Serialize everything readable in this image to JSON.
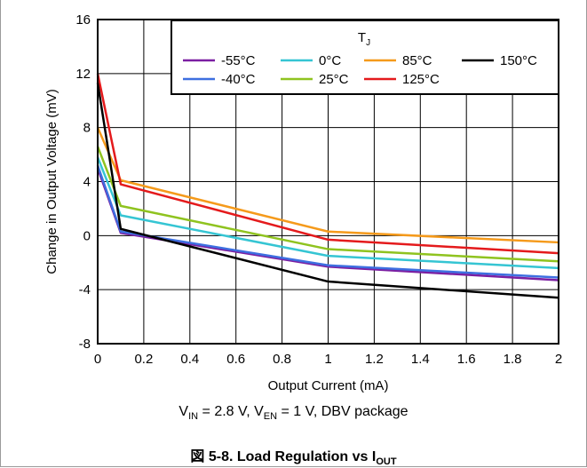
{
  "chart_data": {
    "type": "line",
    "title": "",
    "xlabel": "Output Current (mA)",
    "ylabel": "Change in Output Voltage (mV)",
    "xlim": [
      0,
      2
    ],
    "ylim": [
      -8,
      16
    ],
    "x_ticks": [
      "0",
      "0.2",
      "0.4",
      "0.6",
      "0.8",
      "1",
      "1.2",
      "1.4",
      "1.6",
      "1.8",
      "2"
    ],
    "y_ticks": [
      "16",
      "12",
      "8",
      "4",
      "0",
      "-4",
      "-8"
    ],
    "grid": true,
    "legend": {
      "title": "T",
      "title_sub": "J",
      "placement": "top-right"
    },
    "x": [
      0,
      0.1,
      1,
      2
    ],
    "series": [
      {
        "name": "-55°C",
        "color": "#7b1fa2",
        "values": [
          5.0,
          0.2,
          -2.3,
          -3.3
        ]
      },
      {
        "name": "-40°C",
        "color": "#3d6fe0",
        "values": [
          5.2,
          0.3,
          -2.2,
          -3.1
        ]
      },
      {
        "name": "0°C",
        "color": "#35c5d3",
        "values": [
          5.8,
          1.5,
          -1.5,
          -2.4
        ]
      },
      {
        "name": "25°C",
        "color": "#8fc31f",
        "values": [
          6.6,
          2.2,
          -1.0,
          -1.9
        ]
      },
      {
        "name": "85°C",
        "color": "#f59a1b",
        "values": [
          8.0,
          4.1,
          0.3,
          -0.5
        ]
      },
      {
        "name": "125°C",
        "color": "#e41a1c",
        "values": [
          12.0,
          3.8,
          -0.3,
          -1.3
        ]
      },
      {
        "name": "150°C",
        "color": "#000000",
        "values": [
          11.3,
          0.5,
          -3.4,
          -4.6
        ]
      }
    ]
  },
  "caption": {
    "condition": {
      "vin_main": "V",
      "vin_sub": "IN",
      "vin_rest": " = 2.8 V, V",
      "ven_sub": "EN",
      "ven_rest": " = 1 V, DBV package"
    },
    "figure": {
      "prefix": "図 5-8. Load Regulation vs I",
      "sub": "OUT"
    }
  }
}
